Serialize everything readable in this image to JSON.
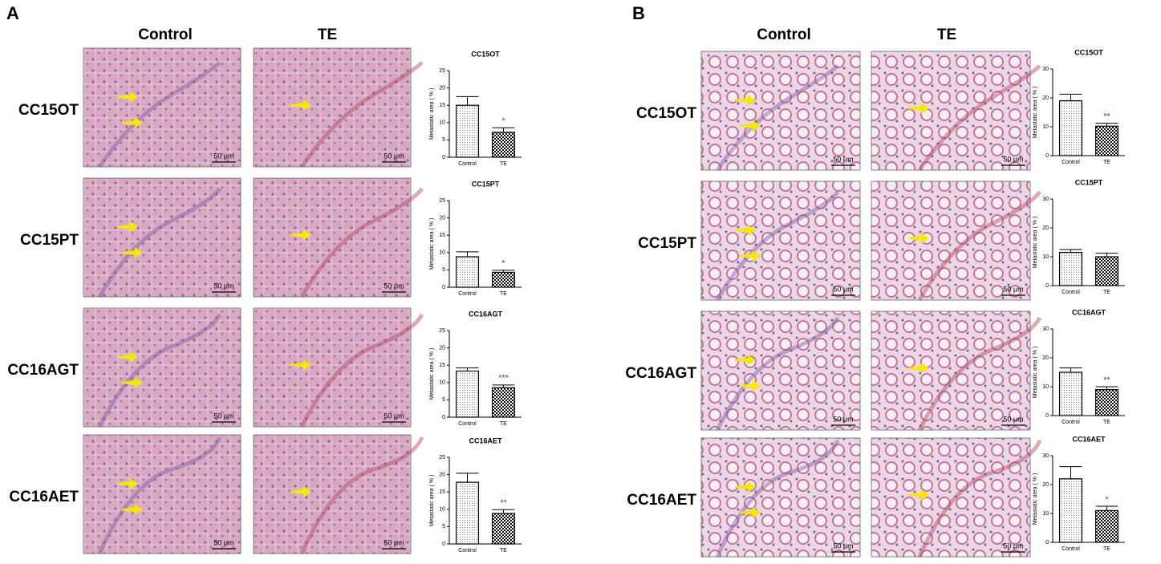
{
  "panels": [
    {
      "label": "A",
      "column_headers": [
        "Control",
        "TE"
      ],
      "rows": [
        {
          "label": "CC15OT",
          "scale_bars": [
            "50 μm",
            "50 μm"
          ]
        },
        {
          "label": "CC15PT",
          "scale_bars": [
            "50 μm",
            "50 μm"
          ]
        },
        {
          "label": "CC16AGT",
          "scale_bars": [
            "50 μm",
            "50 μm"
          ]
        },
        {
          "label": "CC16AET",
          "scale_bars": [
            "50 μm",
            "50 μm"
          ]
        }
      ]
    },
    {
      "label": "B",
      "column_headers": [
        "Control",
        "TE"
      ],
      "rows": [
        {
          "label": "CC15OT",
          "scale_bars": [
            "50 μm",
            "50 μm"
          ]
        },
        {
          "label": "CC15PT",
          "scale_bars": [
            "50 μm",
            "50 μm"
          ]
        },
        {
          "label": "CC16AGT",
          "scale_bars": [
            "50 μm",
            "50 μm"
          ]
        },
        {
          "label": "CC16AET",
          "scale_bars": [
            "50 μm",
            "50 μm"
          ]
        }
      ]
    }
  ],
  "chart_data": [
    {
      "type": "bar",
      "title": "CC15OT",
      "y_label": "Metastatic area ( % )",
      "categories": [
        "Control",
        "TE"
      ],
      "values": [
        15,
        7.2
      ],
      "errors": [
        2.5,
        1.3
      ],
      "significance": [
        null,
        "*"
      ],
      "significance_color": "#2a4ea6",
      "fills": [
        "dots",
        "checker"
      ],
      "ylim": [
        0,
        25
      ],
      "yticks": [
        0,
        5,
        10,
        15,
        20,
        25
      ]
    },
    {
      "type": "bar",
      "title": "CC15PT",
      "y_label": "Metastatic area ( % )",
      "categories": [
        "Control",
        "TE"
      ],
      "values": [
        8.8,
        4.3
      ],
      "errors": [
        1.4,
        0.6
      ],
      "significance": [
        null,
        "*"
      ],
      "significance_color": "#2a4ea6",
      "fills": [
        "dots",
        "checker"
      ],
      "ylim": [
        0,
        25
      ],
      "yticks": [
        0,
        5,
        10,
        15,
        20,
        25
      ]
    },
    {
      "type": "bar",
      "title": "CC16AGT",
      "y_label": "Metastatic area ( % )",
      "categories": [
        "Control",
        "TE"
      ],
      "values": [
        13.3,
        8.5
      ],
      "errors": [
        0.9,
        0.8
      ],
      "significance": [
        null,
        "***"
      ],
      "significance_color": "#2a4ea6",
      "fills": [
        "dots",
        "checker"
      ],
      "ylim": [
        0,
        25
      ],
      "yticks": [
        0,
        5,
        10,
        15,
        20,
        25
      ]
    },
    {
      "type": "bar",
      "title": "CC16AET",
      "y_label": "Metastatic area ( % )",
      "categories": [
        "Control",
        "TE"
      ],
      "values": [
        17.8,
        8.8
      ],
      "errors": [
        2.6,
        1.1
      ],
      "significance": [
        null,
        "**"
      ],
      "significance_color": "#2a4ea6",
      "fills": [
        "dots",
        "checker"
      ],
      "ylim": [
        0,
        25
      ],
      "yticks": [
        0,
        5,
        10,
        15,
        20,
        25
      ]
    },
    {
      "type": "bar",
      "title": "CC15OT",
      "y_label": "Metastatic area ( % )",
      "categories": [
        "Control",
        "TE"
      ],
      "values": [
        19,
        10.2
      ],
      "errors": [
        2.3,
        1.0
      ],
      "significance": [
        null,
        "**"
      ],
      "significance_color": "#2a4ea6",
      "fills": [
        "dots",
        "checker"
      ],
      "ylim": [
        0,
        30
      ],
      "yticks": [
        0,
        10,
        20,
        30
      ]
    },
    {
      "type": "bar",
      "title": "CC15PT",
      "y_label": "Metastatic area ( % )",
      "categories": [
        "Control",
        "TE"
      ],
      "values": [
        11.5,
        10
      ],
      "errors": [
        1.0,
        1.2
      ],
      "fills": [
        "dots",
        "checker"
      ],
      "ylim": [
        0,
        30
      ],
      "yticks": [
        0,
        10,
        20,
        30
      ]
    },
    {
      "type": "bar",
      "title": "CC16AGT",
      "y_label": "Metastatic area ( % )",
      "categories": [
        "Control",
        "TE"
      ],
      "values": [
        15,
        9
      ],
      "errors": [
        1.5,
        1.0
      ],
      "significance": [
        null,
        "**"
      ],
      "significance_color": "#2a4ea6",
      "fills": [
        "dots",
        "checker"
      ],
      "ylim": [
        0,
        30
      ],
      "yticks": [
        0,
        10,
        20,
        30
      ]
    },
    {
      "type": "bar",
      "title": "CC16AET",
      "y_label": "Metastatic area ( % )",
      "categories": [
        "Control",
        "TE"
      ],
      "values": [
        22,
        11
      ],
      "errors": [
        4.2,
        1.5
      ],
      "significance": [
        null,
        "*"
      ],
      "significance_color": "#2a4ea6",
      "fills": [
        "dots",
        "checker"
      ],
      "ylim": [
        0,
        30
      ],
      "yticks": [
        0,
        10,
        20,
        30
      ]
    }
  ]
}
